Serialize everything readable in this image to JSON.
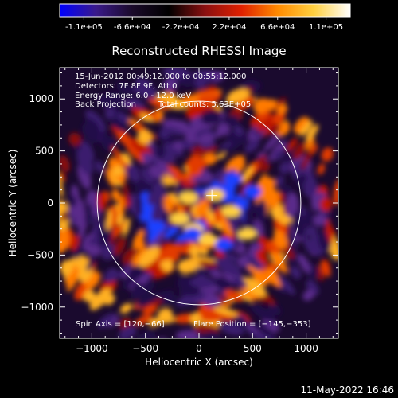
{
  "colorbar": {
    "ticks": [
      "-1.1e+05",
      "-6.6e+04",
      "-2.2e+04",
      "2.2e+04",
      "6.6e+04",
      "1.1e+05"
    ],
    "range": [
      -110000,
      110000
    ],
    "colors": [
      "#0000ff",
      "#3a1a8a",
      "#1a0a2a",
      "#000000",
      "#8a1010",
      "#e02000",
      "#ff8a00",
      "#ffd040",
      "#ffffff"
    ]
  },
  "chart_data": {
    "type": "heatmap",
    "title": "Reconstructed RHESSI Image",
    "xlabel": "Heliocentric X (arcsec)",
    "ylabel": "Heliocentric Y (arcsec)",
    "xlim": [
      -1300,
      1300
    ],
    "ylim": [
      -1300,
      1300
    ],
    "xticks": [
      -1000,
      -500,
      0,
      500,
      1000
    ],
    "yticks": [
      -1000,
      -500,
      0,
      500,
      1000
    ],
    "xtick_labels": [
      "−1000",
      "−500",
      "0",
      "500",
      "1000"
    ],
    "ytick_labels": [
      "−1000",
      "−500",
      "0",
      "500",
      "1000"
    ],
    "solar_limb_radius_arcsec": 950,
    "flare_position": [
      -145,
      -353
    ],
    "spin_axis": [
      120,
      -66
    ],
    "annotations": [
      "15-Jun-2012 00:49:12.000 to 00:55:12.000",
      "Detectors: 7F 8F 9F, Att 0",
      "Energy Range: 6.0 - 12.0 keV",
      "Back Projection",
      "Total counts: 5.63E+05"
    ],
    "footer_annotations": {
      "spin": "Spin Axis = [120,−66]",
      "flare": "Flare Position = [−145,−353]"
    },
    "grid": false
  },
  "timestamp": "11-May-2022 16:46"
}
